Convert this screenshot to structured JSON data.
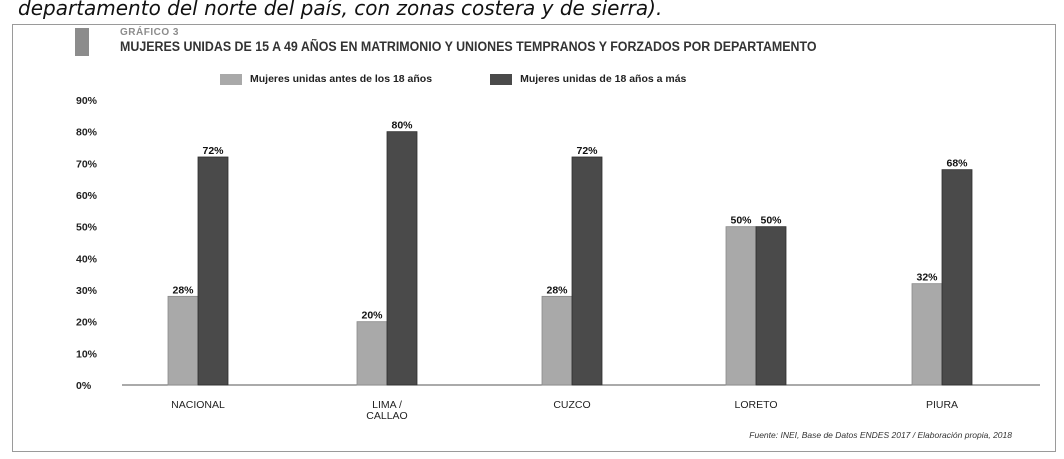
{
  "header": {
    "caption": "departamento del norte del país, con zonas costera y de sierra).",
    "kicker": "GRÁFICO 3",
    "title": "MUJERES UNIDAS DE 15 A 49 AÑOS EN MATRIMONIO Y UNIONES TEMPRANOS Y FORZADOS POR DEPARTAMENTO"
  },
  "colors": {
    "series_light": "#a9a9a9",
    "series_dark": "#4a4a4a",
    "swatch": "#8c8c8c"
  },
  "chart_data": {
    "type": "bar",
    "title": "MUJERES UNIDAS DE 15 A 49 AÑOS EN MATRIMONIO Y UNIONES TEMPRANOS Y FORZADOS POR DEPARTAMENTO",
    "categories": [
      "NACIONAL",
      "LIMA / CALLAO",
      "CUZCO",
      "LORETO",
      "PIURA"
    ],
    "series": [
      {
        "name": "Mujeres unidas antes de los 18 años",
        "values": [
          28,
          20,
          28,
          50,
          32
        ],
        "labels": [
          "28%",
          "20%",
          "28%",
          "50%",
          "32%"
        ]
      },
      {
        "name": "Mujeres unidas de 18 años a más",
        "values": [
          72,
          80,
          72,
          50,
          68
        ],
        "labels": [
          "72%",
          "80%",
          "72%",
          "50%",
          "68%"
        ]
      }
    ],
    "ylim": [
      0,
      90
    ],
    "yticks": [
      "0%",
      "10%",
      "20%",
      "30%",
      "40%",
      "50%",
      "60%",
      "70%",
      "80%",
      "90%"
    ],
    "xlabel": "",
    "ylabel": "",
    "grid": false,
    "legend_position": "top"
  },
  "source": "Fuente: INEI, Base de Datos ENDES 2017 / Elaboración propia, 2018"
}
